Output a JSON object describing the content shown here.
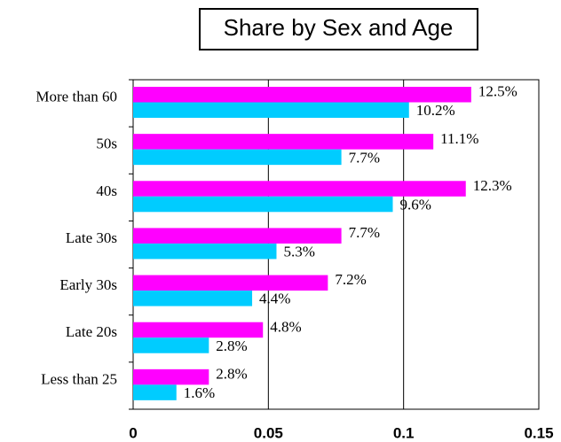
{
  "chart_data": {
    "type": "bar",
    "orientation": "horizontal",
    "title": "Share by Sex and Age",
    "categories": [
      "More than 60",
      "50s",
      "40s",
      "Late 30s",
      "Early 30s",
      "Late 20s",
      "Less than 25"
    ],
    "series": [
      {
        "color": "#ff00ff",
        "values": [
          0.125,
          0.111,
          0.123,
          0.077,
          0.072,
          0.048,
          0.028
        ],
        "value_labels": [
          "12.5%",
          "11.1%",
          "12.3%",
          "7.7%",
          "7.2%",
          "4.8%",
          "2.8%"
        ]
      },
      {
        "color": "#00ccff",
        "values": [
          0.102,
          0.077,
          0.096,
          0.053,
          0.044,
          0.028,
          0.016
        ],
        "value_labels": [
          "10.2%",
          "7.7%",
          "9.6%",
          "5.3%",
          "4.4%",
          "2.8%",
          "1.6%"
        ]
      }
    ],
    "xlim": [
      0,
      0.15
    ],
    "xticks": [
      0,
      0.05,
      0.1,
      0.15
    ],
    "grid": true
  }
}
